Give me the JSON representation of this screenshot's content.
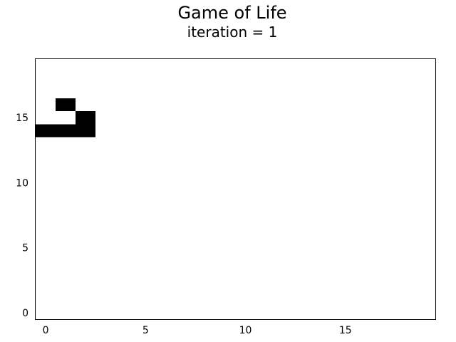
{
  "chart_data": {
    "type": "heatmap",
    "title": "Game of Life",
    "subtitle": "iteration = 1",
    "xlabel": "",
    "ylabel": "",
    "grid_size": [
      20,
      20
    ],
    "xlim": [
      -0.5,
      19.5
    ],
    "ylim": [
      -0.5,
      19.5
    ],
    "x_ticks": [
      0,
      5,
      10,
      15
    ],
    "y_ticks": [
      0,
      5,
      10,
      15
    ],
    "x_tick_labels": [
      "0",
      "5",
      "10",
      "15"
    ],
    "y_tick_labels": [
      "0",
      "5",
      "10",
      "15"
    ],
    "grid": false,
    "alive_color": "#000000",
    "dead_color": "#ffffff",
    "alive_cells": [
      {
        "x": 1,
        "y": 16
      },
      {
        "x": 2,
        "y": 15
      },
      {
        "x": 0,
        "y": 14
      },
      {
        "x": 1,
        "y": 14
      },
      {
        "x": 2,
        "y": 14
      }
    ]
  }
}
